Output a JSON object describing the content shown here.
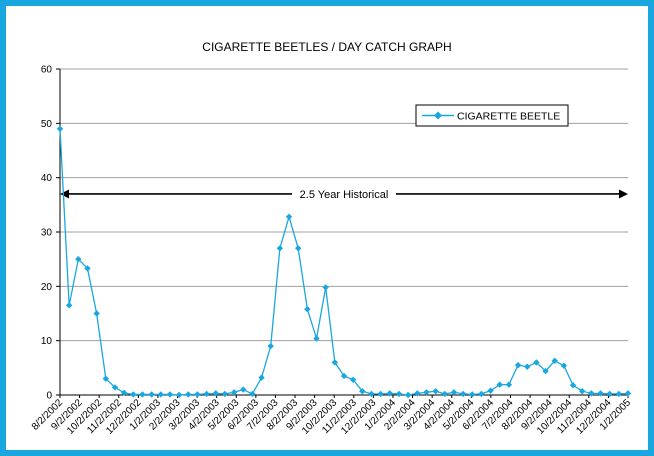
{
  "chart_data": {
    "type": "line",
    "title": "CIGARETTE BEETLES / DAY CATCH GRAPH",
    "xlabel": "",
    "ylabel": "",
    "ylim": [
      0,
      60
    ],
    "yticks": [
      0,
      10,
      20,
      30,
      40,
      50,
      60
    ],
    "grid": true,
    "legend_position": "top-right",
    "x_tick_labels": [
      "8/2/2002",
      "9/2/2002",
      "10/2/2002",
      "11/2/2002",
      "12/2/2002",
      "1/2/2003",
      "2/2/2003",
      "3/2/2003",
      "4/2/2003",
      "5/2/2003",
      "6/2/2003",
      "7/2/2003",
      "8/2/2003",
      "9/2/2003",
      "10/2/2003",
      "11/2/2003",
      "12/2/2003",
      "1/2/2004",
      "2/2/2004",
      "3/2/2004",
      "4/2/2004",
      "5/2/2004",
      "6/2/2004",
      "7/2/2004",
      "8/2/2004",
      "9/2/2004",
      "10/2/2004",
      "11/2/2004",
      "12/2/2004",
      "1/2/2005"
    ],
    "series": [
      {
        "name": "CIGARETTE BEETLE",
        "color": "#1aa7e0",
        "marker": "diamond",
        "values": [
          49,
          16.5,
          25,
          23.3,
          15,
          3,
          1.4,
          0.4,
          0.1,
          0.1,
          0.1,
          0.1,
          0.1,
          0,
          0.1,
          0.1,
          0.2,
          0.3,
          0.2,
          0.5,
          1,
          0.2,
          3.2,
          9,
          27,
          32.8,
          27,
          15.8,
          10.4,
          19.8,
          6,
          3.5,
          2.8,
          0.7,
          0.2,
          0.2,
          0.3,
          0.2,
          0,
          0.3,
          0.5,
          0.7,
          0.2,
          0.5,
          0.2,
          0.1,
          0.2,
          0.8,
          1.9,
          1.9,
          5.5,
          5.2,
          6,
          4.4,
          6.3,
          5.4,
          1.8,
          0.7,
          0.3,
          0.3,
          0.2,
          0.2,
          0.3
        ]
      }
    ],
    "annotation": {
      "text": "2.5 Year Historical",
      "y": 37,
      "style": "double-arrow"
    }
  }
}
